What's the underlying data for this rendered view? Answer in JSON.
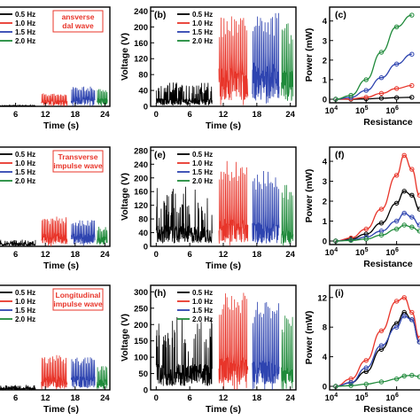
{
  "colors": {
    "s05": "#000000",
    "s10": "#e8352a",
    "s15": "#2e44b0",
    "s20": "#1f8a3a",
    "annot_border": "#e8352a"
  },
  "chart_data": [
    {
      "id": "a",
      "panel_label": "",
      "type": "line",
      "xlabel": "Time (s)",
      "ylabel": "",
      "x_ticks": [
        "6",
        "12",
        "18",
        "24"
      ],
      "y_ticks": [],
      "legend": [
        "0.5 Hz",
        "1.0 Hz",
        "1.5 Hz",
        "2.0 Hz"
      ],
      "annotation": [
        "ansverse",
        "dal wave"
      ],
      "series": [
        {
          "name": "0.5 Hz",
          "values": [
            2,
            2.5,
            3
          ]
        },
        {
          "name": "1.0 Hz",
          "values": [
            20,
            40,
            35
          ]
        },
        {
          "name": "1.5 Hz",
          "values": [
            30,
            60,
            50
          ]
        },
        {
          "name": "2.0 Hz",
          "values": [
            25,
            55,
            45
          ]
        }
      ]
    },
    {
      "id": "b",
      "panel_label": "(b)",
      "type": "line",
      "xlabel": "Time (s)",
      "ylabel": "Voltage (V)",
      "x_ticks": [
        "0",
        "6",
        "12",
        "18",
        "24"
      ],
      "y_ticks": [
        "0",
        "40",
        "80",
        "120",
        "160",
        "200",
        "240"
      ],
      "xlim": [
        0,
        24
      ],
      "ylim": [
        0,
        250
      ],
      "legend": [
        "0.5 Hz",
        "1.0 Hz",
        "1.5 Hz",
        "2.0 Hz"
      ],
      "series": [
        {
          "name": "0.5 Hz",
          "values": [
            20,
            45,
            50
          ]
        },
        {
          "name": "1.0 Hz",
          "values": [
            100,
            230,
            150
          ]
        },
        {
          "name": "1.5 Hz",
          "values": [
            110,
            235,
            160
          ]
        },
        {
          "name": "2.0 Hz",
          "values": [
            90,
            210,
            140
          ]
        }
      ]
    },
    {
      "id": "c",
      "panel_label": "(c)",
      "type": "line",
      "xlabel": "Resistance",
      "ylabel": "Power (mW)",
      "x_ticks": [
        "10^4",
        "10^5",
        "10^6"
      ],
      "y_ticks": [
        "0",
        "1",
        "2",
        "3",
        "4"
      ],
      "ylim": [
        0,
        4.5
      ],
      "series": [
        {
          "name": "0.5 Hz",
          "x": [
            4,
            4.5,
            5,
            5.5,
            6,
            6.5
          ],
          "values": [
            0,
            0,
            0.02,
            0.05,
            0.08,
            0.1
          ]
        },
        {
          "name": "1.0 Hz",
          "x": [
            4,
            4.5,
            5,
            5.5,
            6,
            6.5
          ],
          "values": [
            0,
            0.02,
            0.1,
            0.3,
            0.55,
            0.7
          ]
        },
        {
          "name": "1.5 Hz",
          "x": [
            4,
            4.5,
            5,
            5.5,
            6,
            6.5
          ],
          "values": [
            0,
            0.1,
            0.45,
            1.1,
            1.8,
            2.3
          ]
        },
        {
          "name": "2.0 Hz",
          "x": [
            4,
            4.5,
            5,
            5.5,
            6,
            6.5
          ],
          "values": [
            0,
            0.2,
            1,
            2.4,
            3.7,
            4.3
          ]
        }
      ]
    },
    {
      "id": "d",
      "panel_label": "",
      "type": "line",
      "xlabel": "Time (s)",
      "ylabel": "",
      "x_ticks": [
        "6",
        "12",
        "18",
        "24"
      ],
      "y_ticks": [],
      "legend": [
        "0.5 Hz",
        "1.0 Hz",
        "1.5 Hz",
        "2.0 Hz"
      ],
      "annotation": [
        "Transverse",
        "impulse wave"
      ],
      "series": [
        {
          "name": "0.5 Hz",
          "values": [
            10,
            20,
            15
          ]
        },
        {
          "name": "1.0 Hz",
          "values": [
            40,
            90,
            70
          ]
        },
        {
          "name": "1.5 Hz",
          "values": [
            40,
            80,
            60
          ]
        },
        {
          "name": "2.0 Hz",
          "values": [
            30,
            60,
            50
          ]
        }
      ]
    },
    {
      "id": "e",
      "panel_label": "(e)",
      "type": "line",
      "xlabel": "Time (s)",
      "ylabel": "Voltage (V)",
      "x_ticks": [
        "0",
        "6",
        "12",
        "18",
        "24"
      ],
      "y_ticks": [
        "0",
        "40",
        "80",
        "120",
        "160",
        "200",
        "240",
        "280"
      ],
      "xlim": [
        0,
        24
      ],
      "ylim": [
        0,
        290
      ],
      "legend": [
        "0.5 Hz",
        "1.0 Hz",
        "1.5 Hz",
        "2.0 Hz"
      ],
      "series": [
        {
          "name": "0.5 Hz",
          "values": [
            60,
            200,
            120
          ]
        },
        {
          "name": "1.0 Hz",
          "values": [
            80,
            250,
            150
          ]
        },
        {
          "name": "1.5 Hz",
          "values": [
            70,
            220,
            140
          ]
        },
        {
          "name": "2.0 Hz",
          "values": [
            50,
            180,
            110
          ]
        }
      ]
    },
    {
      "id": "f",
      "panel_label": "(f)",
      "type": "line",
      "xlabel": "Resistance",
      "ylabel": "Power (mW)",
      "x_ticks": [
        "10^4",
        "10^5",
        "10^6"
      ],
      "y_ticks": [
        "0",
        "1",
        "2",
        "3",
        "4"
      ],
      "ylim": [
        0,
        4.5
      ],
      "series": [
        {
          "name": "0.5 Hz",
          "x": [
            4,
            4.5,
            5,
            5.5,
            6,
            6.25,
            6.5,
            6.75
          ],
          "values": [
            0,
            0.1,
            0.35,
            0.9,
            1.9,
            2.5,
            2.3,
            1.6
          ]
        },
        {
          "name": "1.0 Hz",
          "x": [
            4,
            4.5,
            5,
            5.5,
            6,
            6.25,
            6.5,
            6.75
          ],
          "values": [
            0,
            0.15,
            0.6,
            1.6,
            3.3,
            4.3,
            3.6,
            2.3
          ]
        },
        {
          "name": "1.5 Hz",
          "x": [
            4,
            4.5,
            5,
            5.5,
            6,
            6.25,
            6.5,
            6.75
          ],
          "values": [
            0,
            0.05,
            0.2,
            0.5,
            1.0,
            1.4,
            1.2,
            0.8
          ]
        },
        {
          "name": "2.0 Hz",
          "x": [
            4,
            4.5,
            5,
            5.5,
            6,
            6.25,
            6.5,
            6.75
          ],
          "values": [
            0,
            0.03,
            0.1,
            0.3,
            0.6,
            0.8,
            0.7,
            0.5
          ]
        }
      ]
    },
    {
      "id": "g",
      "panel_label": "",
      "type": "line",
      "xlabel": "Time (s)",
      "ylabel": "",
      "x_ticks": [
        "6",
        "12",
        "18",
        "24"
      ],
      "y_ticks": [],
      "legend": [
        "0.5 Hz",
        "1.0 Hz",
        "1.5 Hz",
        "2.0 Hz"
      ],
      "annotation": [
        "Longitudinal",
        "impulse wave"
      ],
      "series": [
        {
          "name": "0.5 Hz",
          "values": [
            5,
            15,
            10
          ]
        },
        {
          "name": "1.0 Hz",
          "values": [
            40,
            100,
            70
          ]
        },
        {
          "name": "1.5 Hz",
          "values": [
            40,
            95,
            70
          ]
        },
        {
          "name": "2.0 Hz",
          "values": [
            30,
            70,
            50
          ]
        }
      ]
    },
    {
      "id": "h",
      "panel_label": "(h)",
      "type": "line",
      "xlabel": "Time (s)",
      "ylabel": "Voltage (V)",
      "x_ticks": [
        "0",
        "6",
        "12",
        "18",
        "24"
      ],
      "y_ticks": [
        "0",
        "50",
        "100",
        "150",
        "200",
        "250",
        "300"
      ],
      "xlim": [
        0,
        24
      ],
      "ylim": [
        0,
        320
      ],
      "legend": [
        "0.5 Hz",
        "1.0 Hz",
        "1.5 Hz",
        "2.0 Hz"
      ],
      "series": [
        {
          "name": "0.5 Hz",
          "values": [
            80,
            290,
            150
          ]
        },
        {
          "name": "1.0 Hz",
          "values": [
            100,
            300,
            180
          ]
        },
        {
          "name": "1.5 Hz",
          "values": [
            90,
            270,
            160
          ]
        },
        {
          "name": "2.0 Hz",
          "values": [
            70,
            230,
            130
          ]
        }
      ]
    },
    {
      "id": "i",
      "panel_label": "(i)",
      "type": "line",
      "xlabel": "Resistance",
      "ylabel": "Power (mW)",
      "x_ticks": [
        "10^4",
        "10^5",
        "10^6"
      ],
      "y_ticks": [
        "0",
        "4",
        "8",
        "12"
      ],
      "ylim": [
        0,
        13
      ],
      "series": [
        {
          "name": "0.5 Hz",
          "x": [
            4,
            4.5,
            5,
            5.5,
            6,
            6.25,
            6.5,
            6.75
          ],
          "values": [
            0,
            0.5,
            2,
            5,
            8.5,
            10,
            9,
            6
          ]
        },
        {
          "name": "1.0 Hz",
          "x": [
            4,
            4.5,
            5,
            5.5,
            6,
            6.25,
            6.5,
            6.75
          ],
          "values": [
            0,
            1,
            3.5,
            7.5,
            11.5,
            12,
            10,
            6.5
          ]
        },
        {
          "name": "1.5 Hz",
          "x": [
            4,
            4.5,
            5,
            5.5,
            6,
            6.25,
            6.5,
            6.75
          ],
          "values": [
            0,
            0.5,
            2.5,
            5.5,
            8,
            9.5,
            9,
            6
          ]
        },
        {
          "name": "2.0 Hz",
          "x": [
            4,
            4.5,
            5,
            5.5,
            6,
            6.25,
            6.5,
            6.75
          ],
          "values": [
            0,
            0.1,
            0.3,
            0.6,
            1,
            1.4,
            1.5,
            1.3
          ]
        }
      ]
    }
  ]
}
